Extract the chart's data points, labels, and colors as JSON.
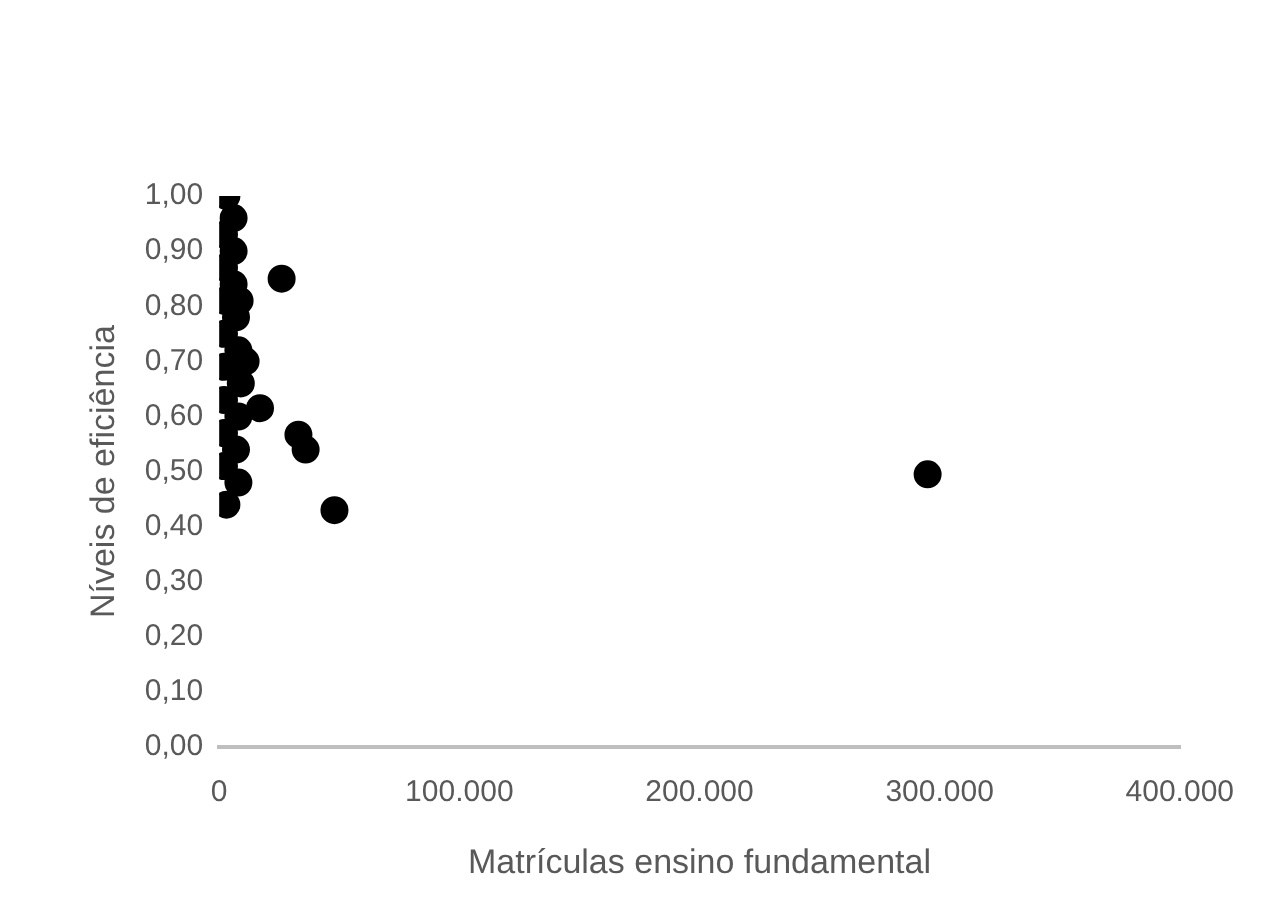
{
  "chart_data": {
    "type": "scatter",
    "xlabel": "Matrículas ensino fundamental",
    "ylabel": "Níveis de eficiência",
    "xlim": [
      0,
      400000
    ],
    "xticks": [
      {
        "value": 0,
        "label": "0"
      },
      {
        "value": 100000,
        "label": "100.000"
      },
      {
        "value": 200000,
        "label": "200.000"
      },
      {
        "value": 300000,
        "label": "300.000"
      },
      {
        "value": 400000,
        "label": "400.000"
      }
    ],
    "ylim": [
      0,
      1
    ],
    "yticks": [
      {
        "value": 0,
        "label": "0,00"
      },
      {
        "value": 0.1,
        "label": "0,10"
      },
      {
        "value": 0.2,
        "label": "0,20"
      },
      {
        "value": 0.3,
        "label": "0,30"
      },
      {
        "value": 0.4,
        "label": "0,40"
      },
      {
        "value": 0.5,
        "label": "0,50"
      },
      {
        "value": 0.6,
        "label": "0,60"
      },
      {
        "value": 0.7,
        "label": "0,70"
      },
      {
        "value": 0.8,
        "label": "0,80"
      },
      {
        "value": 0.9,
        "label": "0,90"
      },
      {
        "value": 1,
        "label": "1,00"
      }
    ],
    "grid": false,
    "marker": "circle",
    "series": [
      {
        "color": "#000000",
        "x": [
          3000,
          6000,
          2000,
          6000,
          2000,
          6000,
          2000,
          7000,
          2000,
          8000,
          2000,
          9000,
          2000,
          8000,
          2000,
          7000,
          2000,
          8000,
          3000,
          8500,
          11000,
          17000,
          26000,
          33000,
          36000,
          48000,
          295000
        ],
        "values": [
          1.0,
          0.96,
          0.93,
          0.9,
          0.87,
          0.84,
          0.81,
          0.78,
          0.75,
          0.72,
          0.69,
          0.66,
          0.63,
          0.6,
          0.57,
          0.54,
          0.51,
          0.48,
          0.44,
          0.81,
          0.7,
          0.615,
          0.85,
          0.567,
          0.54,
          0.43,
          0.495
        ]
      }
    ]
  }
}
